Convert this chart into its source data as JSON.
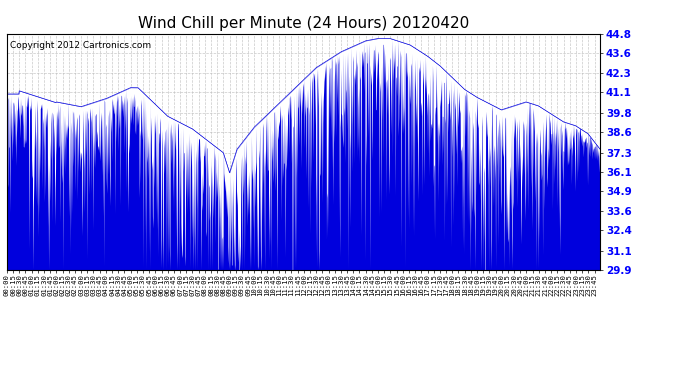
{
  "title": "Wind Chill per Minute (24 Hours) 20120420",
  "copyright": "Copyright 2012 Cartronics.com",
  "y_ticks": [
    29.9,
    31.1,
    32.4,
    33.6,
    34.9,
    36.1,
    37.3,
    38.6,
    39.8,
    41.1,
    42.3,
    43.6,
    44.8
  ],
  "y_min": 29.9,
  "y_max": 44.8,
  "line_color": "#0000DD",
  "fill_color": "#0000DD",
  "background_color": "#FFFFFF",
  "plot_bg_color": "#FFFFFF",
  "grid_color": "#BBBBBB",
  "title_fontsize": 11,
  "copyright_fontsize": 6.5,
  "x_tick_interval_minutes": 15,
  "total_minutes": 1440
}
